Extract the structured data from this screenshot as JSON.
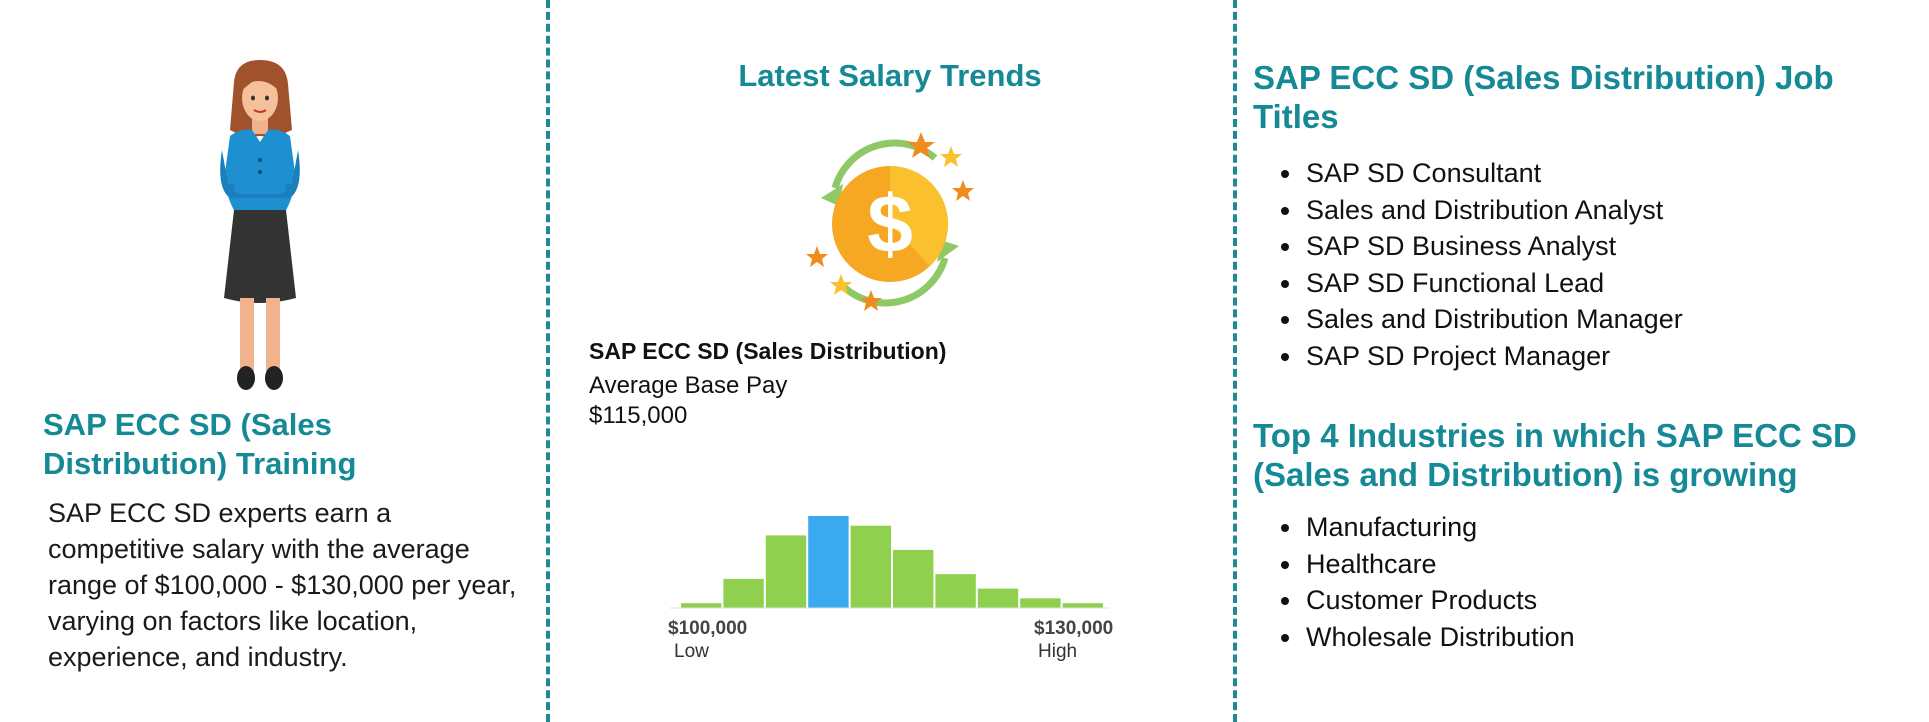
{
  "left": {
    "title": "SAP ECC SD (Sales Distribution) Training",
    "body": "SAP ECC SD experts earn a competitive salary with the average range of $100,000 - $130,000 per year, varying on factors like location, experience, and industry."
  },
  "middle": {
    "title": "Latest Salary Trends",
    "pay_label": "SAP ECC SD (Sales Distribution)",
    "pay_sub": "Average Base Pay",
    "pay_value": "$115,000",
    "low_value": "$100,000",
    "low_label": "Low",
    "high_value": "$130,000",
    "high_label": "High"
  },
  "right": {
    "jobs_title": "SAP ECC SD (Sales Distribution) Job Titles",
    "jobs": [
      "SAP SD Consultant",
      "Sales and Distribution Analyst",
      "SAP SD Business Analyst",
      "SAP SD Functional Lead",
      "Sales and Distribution Manager",
      "SAP SD Project Manager"
    ],
    "industries_title": "Top 4 Industries in which SAP ECC SD (Sales and Distribution) is growing",
    "industries": [
      "Manufacturing",
      "Healthcare",
      "Customer Products",
      "Wholesale Distribution"
    ]
  },
  "colors": {
    "accent": "#158995",
    "divider": "#1f8a94",
    "bar": "#8fd14f",
    "bar_highlight": "#3aa9f0"
  },
  "chart_data": {
    "type": "bar",
    "values": [
      1,
      6,
      15,
      19,
      17,
      12,
      7,
      4,
      2,
      1
    ],
    "highlight_index": 3,
    "xlabel_low": "$100,000",
    "xlabel_high": "$130,000"
  }
}
